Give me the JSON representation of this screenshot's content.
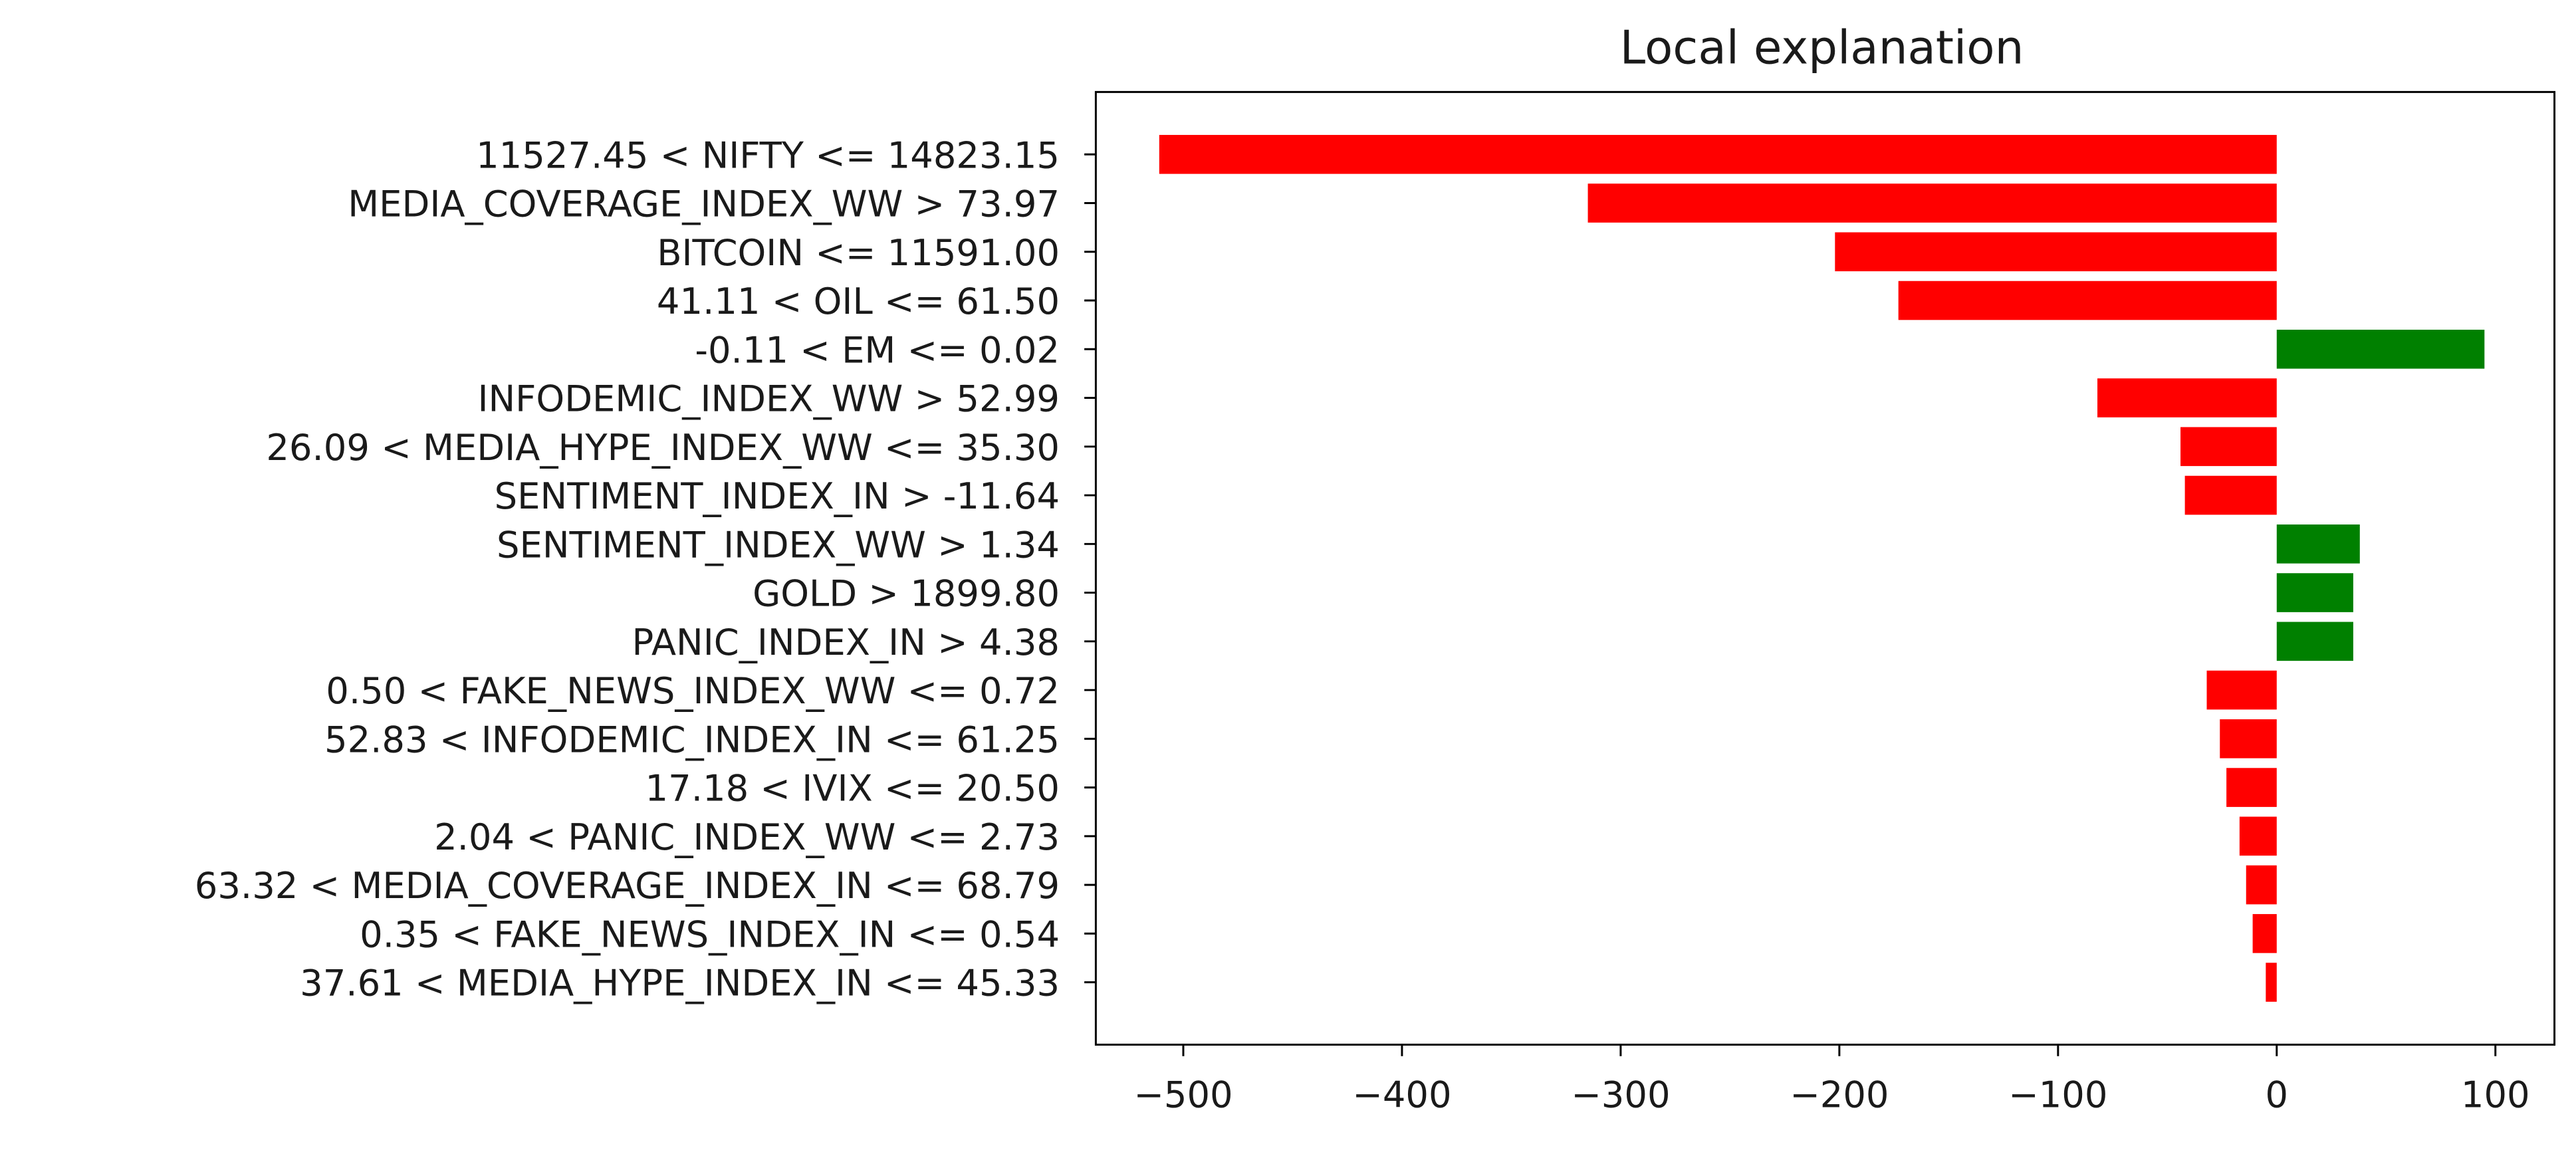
{
  "chart_data": {
    "type": "barh",
    "title": "Local explanation",
    "categories": [
      "11527.45 < NIFTY <= 14823.15",
      "MEDIA_COVERAGE_INDEX_WW > 73.97",
      "BITCOIN <= 11591.00",
      "41.11 < OIL <= 61.50",
      "-0.11 < EM <= 0.02",
      "INFODEMIC_INDEX_WW > 52.99",
      "26.09 < MEDIA_HYPE_INDEX_WW <= 35.30",
      "SENTIMENT_INDEX_IN > -11.64",
      "SENTIMENT_INDEX_WW > 1.34",
      "GOLD > 1899.80",
      "PANIC_INDEX_IN > 4.38",
      "0.50 < FAKE_NEWS_INDEX_WW <= 0.72",
      "52.83 < INFODEMIC_INDEX_IN <= 61.25",
      "17.18 < IVIX <= 20.50",
      "2.04 < PANIC_INDEX_WW <= 2.73",
      "63.32 < MEDIA_COVERAGE_INDEX_IN <= 68.79",
      "0.35 < FAKE_NEWS_INDEX_IN <= 0.54",
      "37.61 < MEDIA_HYPE_INDEX_IN <= 45.33"
    ],
    "values": [
      -511,
      -315,
      -202,
      -173,
      95,
      -82,
      -44,
      -42,
      38,
      35,
      35,
      -32,
      -26,
      -23,
      -17,
      -14,
      -11,
      -5
    ],
    "positive_color": "#008000",
    "negative_color": "#ff0000",
    "xlim": [
      -540,
      127
    ],
    "xticks": [
      {
        "value": -500,
        "label": "−500"
      },
      {
        "value": -400,
        "label": "−400"
      },
      {
        "value": -300,
        "label": "−300"
      },
      {
        "value": -200,
        "label": "−200"
      },
      {
        "value": -100,
        "label": "−100"
      },
      0,
      100
    ],
    "grid": false
  }
}
